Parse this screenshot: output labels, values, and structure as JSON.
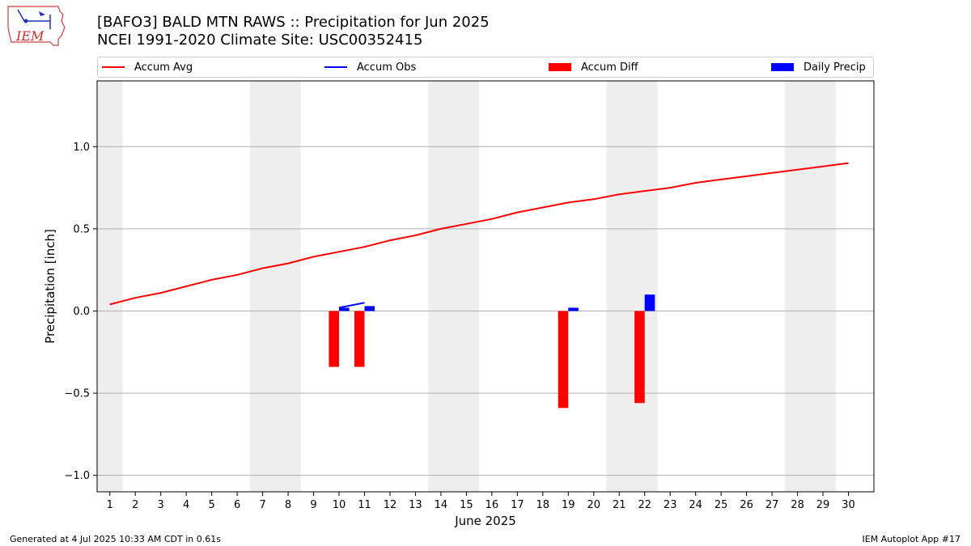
{
  "title_line1": "[BAFO3] BALD MTN RAWS :: Precipitation for Jun 2025",
  "title_line2": "NCEI 1991-2020 Climate Site: USC00352415",
  "logo_text": "IEM",
  "legend": [
    {
      "label": "Accum Avg",
      "color": "#ff0000",
      "kind": "line"
    },
    {
      "label": "Accum Obs",
      "color": "#0000ff",
      "kind": "line"
    },
    {
      "label": "Accum Diff",
      "color": "#ff0000",
      "kind": "box"
    },
    {
      "label": "Daily Precip",
      "color": "#0000ff",
      "kind": "box"
    }
  ],
  "footer_left": "Generated at 4 Jul 2025 10:33 AM CDT in 0.61s",
  "footer_right": "IEM Autoplot App #17",
  "chart_data": {
    "type": "bar",
    "xlabel": "June 2025",
    "ylabel": "Precipitation [inch]",
    "xlim": [
      0.5,
      31.0
    ],
    "ylim": [
      -1.1,
      1.4
    ],
    "x_ticks": [
      1,
      2,
      3,
      4,
      5,
      6,
      7,
      8,
      9,
      10,
      11,
      12,
      13,
      14,
      15,
      16,
      17,
      18,
      19,
      20,
      21,
      22,
      23,
      24,
      25,
      26,
      27,
      28,
      29,
      30
    ],
    "y_ticks": [
      1.0,
      0.5,
      0.0,
      -0.5,
      -1.0
    ],
    "y_tick_labels": [
      "1.0",
      "0.5",
      "0.0",
      "−0.5",
      "−1.0"
    ],
    "grid": "horizontal",
    "weekend_shading": [
      [
        0.5,
        1.5
      ],
      [
        6.5,
        8.5
      ],
      [
        13.5,
        15.5
      ],
      [
        20.5,
        22.5
      ],
      [
        27.5,
        29.5
      ]
    ],
    "shade_color": "#eeeeee",
    "series": [
      {
        "name": "Accum Avg",
        "type": "line",
        "color": "#ff0000",
        "x": [
          1,
          2,
          3,
          4,
          5,
          6,
          7,
          8,
          9,
          10,
          11,
          12,
          13,
          14,
          15,
          16,
          17,
          18,
          19,
          20,
          21,
          22,
          23,
          24,
          25,
          26,
          27,
          28,
          29,
          30
        ],
        "values": [
          0.04,
          0.08,
          0.11,
          0.15,
          0.19,
          0.22,
          0.26,
          0.29,
          0.33,
          0.36,
          0.39,
          0.43,
          0.46,
          0.5,
          0.53,
          0.56,
          0.6,
          0.63,
          0.66,
          0.68,
          0.71,
          0.73,
          0.75,
          0.78,
          0.8,
          0.82,
          0.84,
          0.86,
          0.88,
          0.9
        ]
      },
      {
        "name": "Accum Obs",
        "type": "line",
        "color": "#0000ff",
        "x": [
          10,
          11
        ],
        "values": [
          0.02,
          0.05
        ]
      },
      {
        "name": "Accum Diff",
        "type": "bar",
        "color": "#ff0000",
        "x": [
          10,
          11,
          19,
          22
        ],
        "values": [
          -0.34,
          -0.34,
          -0.59,
          -0.56
        ]
      },
      {
        "name": "Daily Precip",
        "type": "bar",
        "color": "#0000ff",
        "x": [
          10,
          11,
          19,
          22
        ],
        "values": [
          0.02,
          0.03,
          0.02,
          0.1
        ]
      }
    ]
  }
}
